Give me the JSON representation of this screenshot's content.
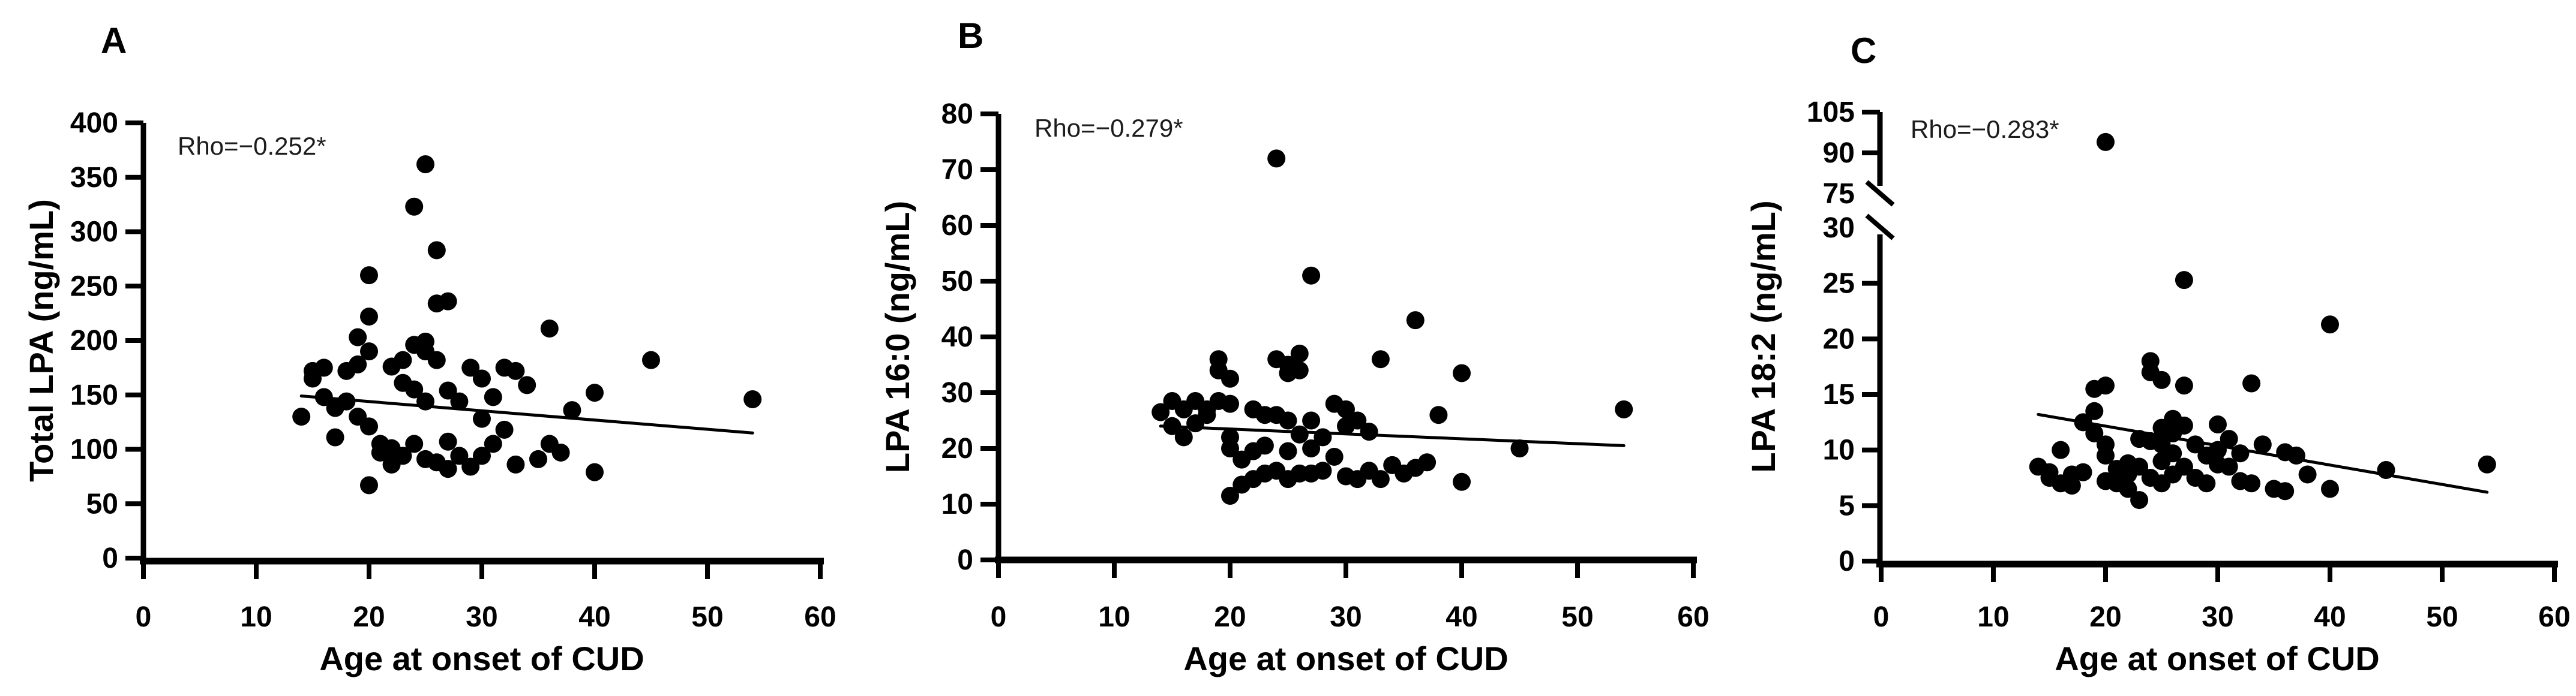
{
  "figure_background": "#ffffff",
  "ink_color": "#000000",
  "annotation_color": "#1c1c1c",
  "chart_data": [
    {
      "type": "scatter",
      "panel_label": "A",
      "annotation": "Rho=−0.252*",
      "xlabel": "Age at onset of CUD",
      "ylabel": "Total LPA (ng/mL)",
      "xlim": [
        0,
        60
      ],
      "ylim": [
        0,
        400
      ],
      "x_ticks": [
        0,
        10,
        20,
        30,
        40,
        50,
        60
      ],
      "y_ticks": [
        0,
        50,
        100,
        150,
        200,
        250,
        300,
        350,
        400
      ],
      "grid": false,
      "legend": false,
      "x": [
        14,
        15,
        15,
        16,
        16,
        17,
        17,
        18,
        18,
        19,
        19,
        19,
        20,
        20,
        20,
        20,
        20,
        21,
        21,
        22,
        22,
        22,
        23,
        23,
        23,
        24,
        24,
        24,
        24,
        25,
        25,
        25,
        25,
        25,
        26,
        26,
        26,
        26,
        27,
        27,
        27,
        27,
        28,
        28,
        29,
        29,
        30,
        30,
        30,
        31,
        31,
        32,
        32,
        33,
        33,
        34,
        35,
        36,
        36,
        37,
        38,
        40,
        40,
        45,
        54
      ],
      "y": [
        130,
        172,
        165,
        175,
        148,
        138,
        111,
        172,
        144,
        203,
        178,
        130,
        260,
        222,
        190,
        121,
        67,
        105,
        97,
        176,
        101,
        86,
        182,
        161,
        94,
        323,
        196,
        155,
        105,
        362,
        199,
        190,
        144,
        91,
        283,
        234,
        182,
        88,
        236,
        154,
        107,
        82,
        144,
        94,
        175,
        84,
        165,
        128,
        94,
        148,
        105,
        175,
        118,
        172,
        86,
        159,
        91,
        211,
        105,
        97,
        136,
        152,
        79,
        182,
        146
      ],
      "trend_line": {
        "x1": 14,
        "y1": 149,
        "x2": 54,
        "y2": 115
      }
    },
    {
      "type": "scatter",
      "panel_label": "B",
      "annotation": "Rho=−0.279*",
      "xlabel": "Age at onset of CUD",
      "ylabel": "LPA 16:0 (ng/mL)",
      "xlim": [
        0,
        60
      ],
      "ylim": [
        0,
        80
      ],
      "x_ticks": [
        0,
        10,
        20,
        30,
        40,
        50,
        60
      ],
      "y_ticks": [
        0,
        10,
        20,
        30,
        40,
        50,
        60,
        70,
        80
      ],
      "grid": false,
      "legend": false,
      "x": [
        14,
        15,
        15,
        16,
        16,
        17,
        17,
        18,
        18,
        19,
        19,
        19,
        20,
        20,
        20,
        20,
        20,
        21,
        21,
        22,
        22,
        22,
        23,
        23,
        23,
        24,
        24,
        24,
        24,
        25,
        25,
        25,
        25,
        25,
        26,
        26,
        26,
        26,
        27,
        27,
        27,
        27,
        28,
        28,
        29,
        29,
        30,
        30,
        30,
        31,
        31,
        32,
        32,
        33,
        33,
        34,
        35,
        36,
        36,
        37,
        38,
        40,
        40,
        45,
        54
      ],
      "y": [
        26.5,
        28.5,
        24,
        27,
        22,
        28.5,
        24.5,
        27,
        26,
        36,
        34,
        28.5,
        32.5,
        28,
        22,
        20,
        11.5,
        13.5,
        18,
        27,
        19.5,
        14.5,
        26,
        20.5,
        15.5,
        72,
        36,
        26,
        16,
        35,
        33.5,
        25,
        19.5,
        14.5,
        37,
        34,
        22.5,
        15.5,
        51,
        25,
        20,
        15.5,
        22,
        16,
        28,
        18.5,
        27,
        24,
        15,
        25,
        14.5,
        23,
        16,
        36,
        14.5,
        17,
        15.5,
        43,
        16.5,
        17.5,
        26,
        33.5,
        14,
        20,
        27
      ],
      "trend_line": {
        "x1": 14,
        "y1": 24.0,
        "x2": 54,
        "y2": 20.5
      }
    },
    {
      "type": "scatter",
      "panel_label": "C",
      "annotation": "Rho=−0.283*",
      "xlabel": "Age at onset of CUD",
      "ylabel": "LPA 18:2 (ng/mL)",
      "xlim": [
        0,
        60
      ],
      "ylim": [
        0,
        105
      ],
      "x_ticks": [
        0,
        10,
        20,
        30,
        40,
        50,
        60
      ],
      "y_ticks": [
        0,
        5,
        10,
        15,
        20,
        25,
        30,
        75,
        90,
        105
      ],
      "y_axis_break": {
        "lower_ticks": [
          0,
          5,
          10,
          15,
          20,
          25,
          30
        ],
        "upper_ticks": [
          75,
          90,
          105
        ],
        "lower_max": 30,
        "upper_min": 75
      },
      "grid": false,
      "legend": false,
      "x": [
        14,
        15,
        15,
        16,
        16,
        17,
        17,
        18,
        18,
        19,
        19,
        19,
        20,
        20,
        20,
        20,
        20,
        21,
        21,
        22,
        22,
        22,
        23,
        23,
        23,
        24,
        24,
        24,
        24,
        25,
        25,
        25,
        25,
        25,
        26,
        26,
        26,
        26,
        27,
        27,
        27,
        27,
        28,
        28,
        29,
        29,
        30,
        30,
        30,
        31,
        31,
        32,
        32,
        33,
        33,
        34,
        35,
        36,
        36,
        37,
        38,
        40,
        40,
        45,
        54
      ],
      "y": [
        8.5,
        8,
        7.5,
        10,
        7,
        7.8,
        6.8,
        12.5,
        8,
        15.5,
        13.5,
        11.5,
        94,
        15.8,
        10.5,
        9.5,
        7.2,
        8.3,
        7,
        8.8,
        7.8,
        6.5,
        11,
        8.5,
        5.5,
        18,
        17,
        10.8,
        7.5,
        16.3,
        12,
        10.5,
        9,
        7,
        12.8,
        11.5,
        9.7,
        7.8,
        25.3,
        15.8,
        12.2,
        8.5,
        10.5,
        7.5,
        9.5,
        7,
        12.3,
        10,
        8.7,
        11,
        8.5,
        9.7,
        7.2,
        16,
        7,
        10.5,
        6.5,
        9.8,
        6.3,
        9.5,
        7.8,
        21.3,
        6.5,
        8.2,
        8.7
      ],
      "trend_line": {
        "x1": 14,
        "y1": 13.2,
        "x2": 54,
        "y2": 6.2
      }
    }
  ]
}
